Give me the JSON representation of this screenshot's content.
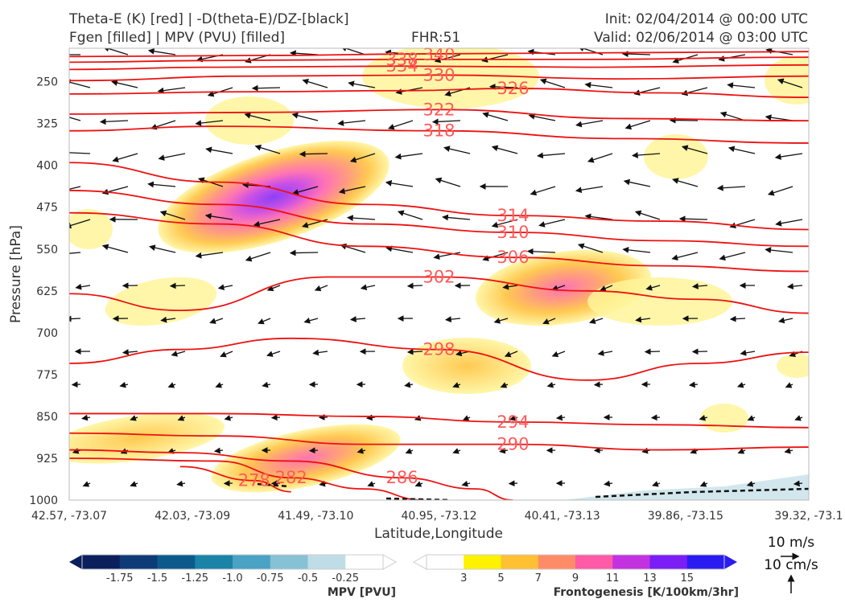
{
  "header": {
    "title_left_1": "Theta-E (K) [red] | -D(theta-E)/DZ-[black]",
    "title_left_2": "Fgen [filled] | MPV (PVU) [filled]",
    "fhr": "FHR:51",
    "init": "Init: 02/04/2014 @ 00:00 UTC",
    "valid": "Valid: 02/06/2014 @ 03:00 UTC"
  },
  "chart_data": {
    "type": "cross-section",
    "xlabel": "Latitude,Longitude",
    "ylabel": "Pressure [hPa]",
    "x_ticks": [
      "42.57, -73.07",
      "42.03, -73.09",
      "41.49, -73.10",
      "40.95, -73.12",
      "40.41, -73.13",
      "39.86, -73.15",
      "39.32, -73.1"
    ],
    "y_ticks": [
      250,
      325,
      400,
      475,
      550,
      625,
      700,
      775,
      850,
      925,
      1000
    ],
    "ylim": [
      1000,
      190
    ],
    "grid": false,
    "theta_e_contours": [
      {
        "label": "340",
        "points": [
          [
            0.0,
            205
          ],
          [
            0.25,
            203
          ],
          [
            0.5,
            200
          ],
          [
            0.75,
            198
          ],
          [
            1.0,
            196
          ]
        ]
      },
      {
        "label": "338",
        "points": [
          [
            0.0,
            215
          ],
          [
            0.2,
            212
          ],
          [
            0.45,
            210
          ],
          [
            0.7,
            210
          ],
          [
            1.0,
            206
          ]
        ]
      },
      {
        "label": "334",
        "points": [
          [
            0.0,
            228
          ],
          [
            0.2,
            224
          ],
          [
            0.45,
            222
          ],
          [
            0.7,
            224
          ],
          [
            1.0,
            220
          ]
        ]
      },
      {
        "label": "330",
        "points": [
          [
            0.0,
            248
          ],
          [
            0.25,
            240
          ],
          [
            0.5,
            238
          ],
          [
            0.75,
            245
          ],
          [
            1.0,
            240
          ]
        ]
      },
      {
        "label": "326",
        "points": [
          [
            0.0,
            272
          ],
          [
            0.25,
            268
          ],
          [
            0.45,
            266
          ],
          [
            0.6,
            262
          ],
          [
            0.8,
            270
          ],
          [
            1.0,
            278
          ]
        ]
      },
      {
        "label": "322",
        "points": [
          [
            0.0,
            308
          ],
          [
            0.25,
            305
          ],
          [
            0.5,
            300
          ],
          [
            0.75,
            316
          ],
          [
            1.0,
            320
          ]
        ]
      },
      {
        "label": "318",
        "points": [
          [
            0.0,
            338
          ],
          [
            0.2,
            330
          ],
          [
            0.5,
            338
          ],
          [
            0.75,
            352
          ],
          [
            1.0,
            360
          ]
        ]
      },
      {
        "label": "314",
        "points": [
          [
            0.0,
            395
          ],
          [
            0.2,
            430
          ],
          [
            0.4,
            470
          ],
          [
            0.6,
            490
          ],
          [
            0.8,
            500
          ],
          [
            1.0,
            515
          ]
        ]
      },
      {
        "label": "310",
        "points": [
          [
            0.0,
            445
          ],
          [
            0.2,
            470
          ],
          [
            0.4,
            505
          ],
          [
            0.6,
            520
          ],
          [
            0.8,
            535
          ],
          [
            1.0,
            545
          ]
        ]
      },
      {
        "label": "306",
        "points": [
          [
            0.0,
            485
          ],
          [
            0.2,
            505
          ],
          [
            0.4,
            545
          ],
          [
            0.6,
            565
          ],
          [
            0.8,
            580
          ],
          [
            1.0,
            590
          ]
        ]
      },
      {
        "label": "302",
        "points": [
          [
            0.0,
            630
          ],
          [
            0.15,
            660
          ],
          [
            0.35,
            600
          ],
          [
            0.5,
            600
          ],
          [
            0.7,
            625
          ],
          [
            0.85,
            640
          ],
          [
            1.0,
            665
          ]
        ]
      },
      {
        "label": "298",
        "points": [
          [
            0.0,
            755
          ],
          [
            0.15,
            730
          ],
          [
            0.3,
            710
          ],
          [
            0.5,
            730
          ],
          [
            0.7,
            785
          ],
          [
            0.85,
            755
          ],
          [
            1.0,
            735
          ]
        ]
      },
      {
        "label": "294",
        "points": [
          [
            0.0,
            845
          ],
          [
            0.2,
            845
          ],
          [
            0.4,
            850
          ],
          [
            0.6,
            860
          ],
          [
            0.8,
            865
          ],
          [
            1.0,
            870
          ]
        ]
      },
      {
        "label": "290",
        "points": [
          [
            0.0,
            880
          ],
          [
            0.2,
            885
          ],
          [
            0.4,
            900
          ],
          [
            0.6,
            900
          ],
          [
            0.8,
            910
          ],
          [
            1.0,
            905
          ]
        ]
      },
      {
        "label": "286",
        "points": [
          [
            0.0,
            910
          ],
          [
            0.15,
            915
          ],
          [
            0.3,
            930
          ],
          [
            0.45,
            960
          ],
          [
            0.55,
            980
          ],
          [
            0.6,
            1000
          ]
        ]
      },
      {
        "label": "282",
        "points": [
          [
            0.0,
            925
          ],
          [
            0.2,
            930
          ],
          [
            0.3,
            960
          ],
          [
            0.4,
            980
          ],
          [
            0.48,
            1000
          ]
        ]
      },
      {
        "label": "278",
        "points": [
          [
            0.15,
            940
          ],
          [
            0.25,
            965
          ],
          [
            0.3,
            985
          ]
        ]
      }
    ],
    "fgen_colorbar": {
      "title": "Frontogenesis [K/100km/3hr]",
      "levels": [
        3,
        5,
        7,
        9,
        11,
        13,
        15
      ],
      "colors": [
        "#ffffff",
        "#fff200",
        "#ffc033",
        "#ff8c66",
        "#ff5aa8",
        "#c232e0",
        "#7a1ef5",
        "#2a1cf0"
      ]
    },
    "mpv_colorbar": {
      "title": "MPV [PVU]",
      "levels": [
        -1.75,
        -1.5,
        -1.25,
        -1.0,
        -0.75,
        -0.5,
        -0.25
      ],
      "tick_labels": [
        "-1.75",
        "-1.5",
        "-1.25",
        "-1.0",
        "-0.75",
        "-0.5",
        "-0.25"
      ],
      "colors": [
        "#0a1f5c",
        "#0f3a78",
        "#0c5a8c",
        "#1b82a8",
        "#4aa3c4",
        "#86c1d6",
        "#bfdde6",
        "#ffffff"
      ]
    },
    "vector_key": {
      "horizontal": "10 m/s",
      "vertical": "10 cm/s"
    }
  }
}
